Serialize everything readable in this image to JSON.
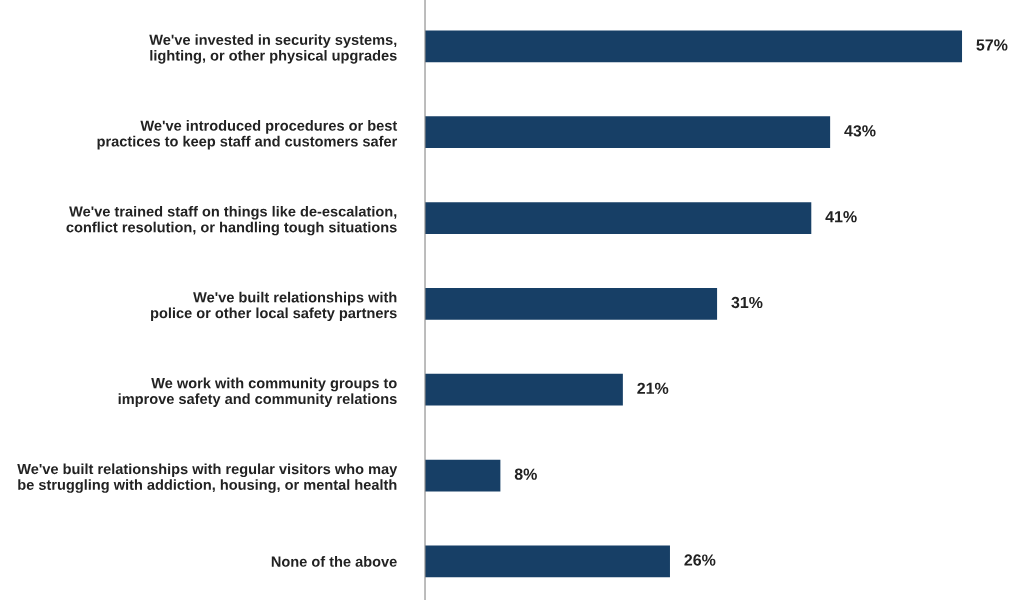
{
  "chart_data": {
    "type": "bar",
    "orientation": "horizontal",
    "categories": [
      "We've invested in security systems,\nlighting, or other physical upgrades",
      "We've introduced procedures or best\npractices to keep staff and customers safer",
      "We've trained staff on things like de-escalation,\nconflict resolution, or handling tough situations",
      "We've built relationships with\npolice or other local safety partners",
      "We work with community groups to\nimprove safety and community relations",
      "We've built relationships with regular visitors who may\nbe struggling with addiction, housing, or mental health",
      "None of the above"
    ],
    "values": [
      57,
      43,
      41,
      31,
      21,
      8,
      26
    ],
    "value_labels": [
      "57%",
      "43%",
      "41%",
      "31%",
      "21%",
      "8%",
      "26%"
    ],
    "color": "#173f66",
    "grid": false,
    "legend": false
  }
}
